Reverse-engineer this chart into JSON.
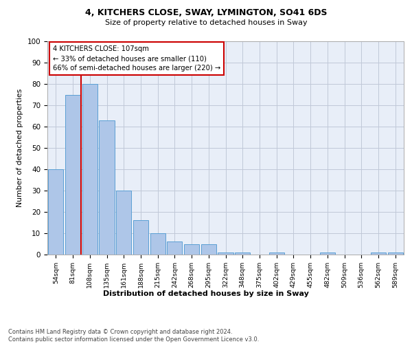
{
  "title1": "4, KITCHERS CLOSE, SWAY, LYMINGTON, SO41 6DS",
  "title2": "Size of property relative to detached houses in Sway",
  "xlabel": "Distribution of detached houses by size in Sway",
  "ylabel": "Number of detached properties",
  "footnote": "Contains HM Land Registry data © Crown copyright and database right 2024.\nContains public sector information licensed under the Open Government Licence v3.0.",
  "bin_labels": [
    "54sqm",
    "81sqm",
    "108sqm",
    "135sqm",
    "161sqm",
    "188sqm",
    "215sqm",
    "242sqm",
    "268sqm",
    "295sqm",
    "322sqm",
    "348sqm",
    "375sqm",
    "402sqm",
    "429sqm",
    "455sqm",
    "482sqm",
    "509sqm",
    "536sqm",
    "562sqm",
    "589sqm"
  ],
  "bar_values": [
    40,
    75,
    80,
    63,
    30,
    16,
    10,
    6,
    5,
    5,
    1,
    1,
    0,
    1,
    0,
    0,
    1,
    0,
    0,
    1,
    1
  ],
  "bar_color": "#aec6e8",
  "bar_edge_color": "#5a9fd4",
  "annotation_text": "4 KITCHERS CLOSE: 107sqm\n← 33% of detached houses are smaller (110)\n66% of semi-detached houses are larger (220) →",
  "annotation_box_color": "#ffffff",
  "annotation_box_edge": "#cc0000",
  "vline_color": "#cc0000",
  "ylim": [
    0,
    100
  ],
  "yticks": [
    0,
    10,
    20,
    30,
    40,
    50,
    60,
    70,
    80,
    90,
    100
  ],
  "grid_color": "#c0c8d8",
  "bg_color": "#e8eef8",
  "fig_bg": "#ffffff"
}
